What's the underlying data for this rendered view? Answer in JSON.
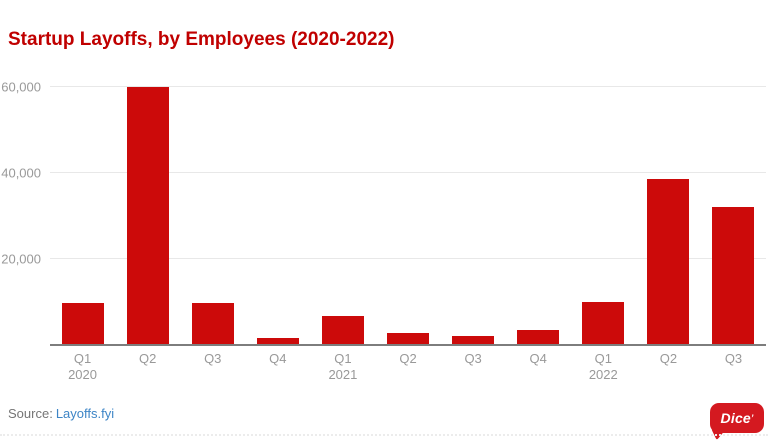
{
  "title": "Startup Layoffs, by Employees (2020-2022)",
  "colors": {
    "title_red": "#c00000",
    "bar_red": "#cc0a0a",
    "logo_red": "#d41920",
    "link_blue": "#3d85c6",
    "axis_gray": "#7d7d7d",
    "grid_gray": "#e8e8e8",
    "tick_gray": "#999999",
    "text_gray": "#757575"
  },
  "chart_data": {
    "type": "bar",
    "title": "Startup Layoffs, by Employees (2020-2022)",
    "categories": [
      "Q1 2020",
      "Q2 2020",
      "Q3 2020",
      "Q4 2020",
      "Q1 2021",
      "Q2 2021",
      "Q3 2021",
      "Q4 2021",
      "Q1 2022",
      "Q2 2022",
      "Q3 2022"
    ],
    "x_tick_lines": [
      [
        "Q1",
        "2020"
      ],
      [
        "Q2",
        ""
      ],
      [
        "Q3",
        ""
      ],
      [
        "Q4",
        ""
      ],
      [
        "Q1",
        "2021"
      ],
      [
        "Q2",
        ""
      ],
      [
        "Q3",
        ""
      ],
      [
        "Q4",
        ""
      ],
      [
        "Q1",
        "2022"
      ],
      [
        "Q2",
        ""
      ],
      [
        "Q3",
        ""
      ]
    ],
    "values": [
      9800,
      60000,
      9800,
      1700,
      6800,
      2700,
      2100,
      3400,
      9900,
      38500,
      32000
    ],
    "xlabel": "",
    "ylabel": "",
    "ylim": [
      0,
      60000
    ],
    "yticks": [
      {
        "value": 20000,
        "label": "20,000"
      },
      {
        "value": 40000,
        "label": "40,000"
      },
      {
        "value": 60000,
        "label": "60,000"
      }
    ],
    "grid": "horizontal",
    "legend": null,
    "bar_color": "#cc0a0a"
  },
  "footer": {
    "source_label": "Source:",
    "source_link_text": "Layoffs.fyi"
  },
  "logo": {
    "text": "Dice",
    "mark": "’"
  }
}
